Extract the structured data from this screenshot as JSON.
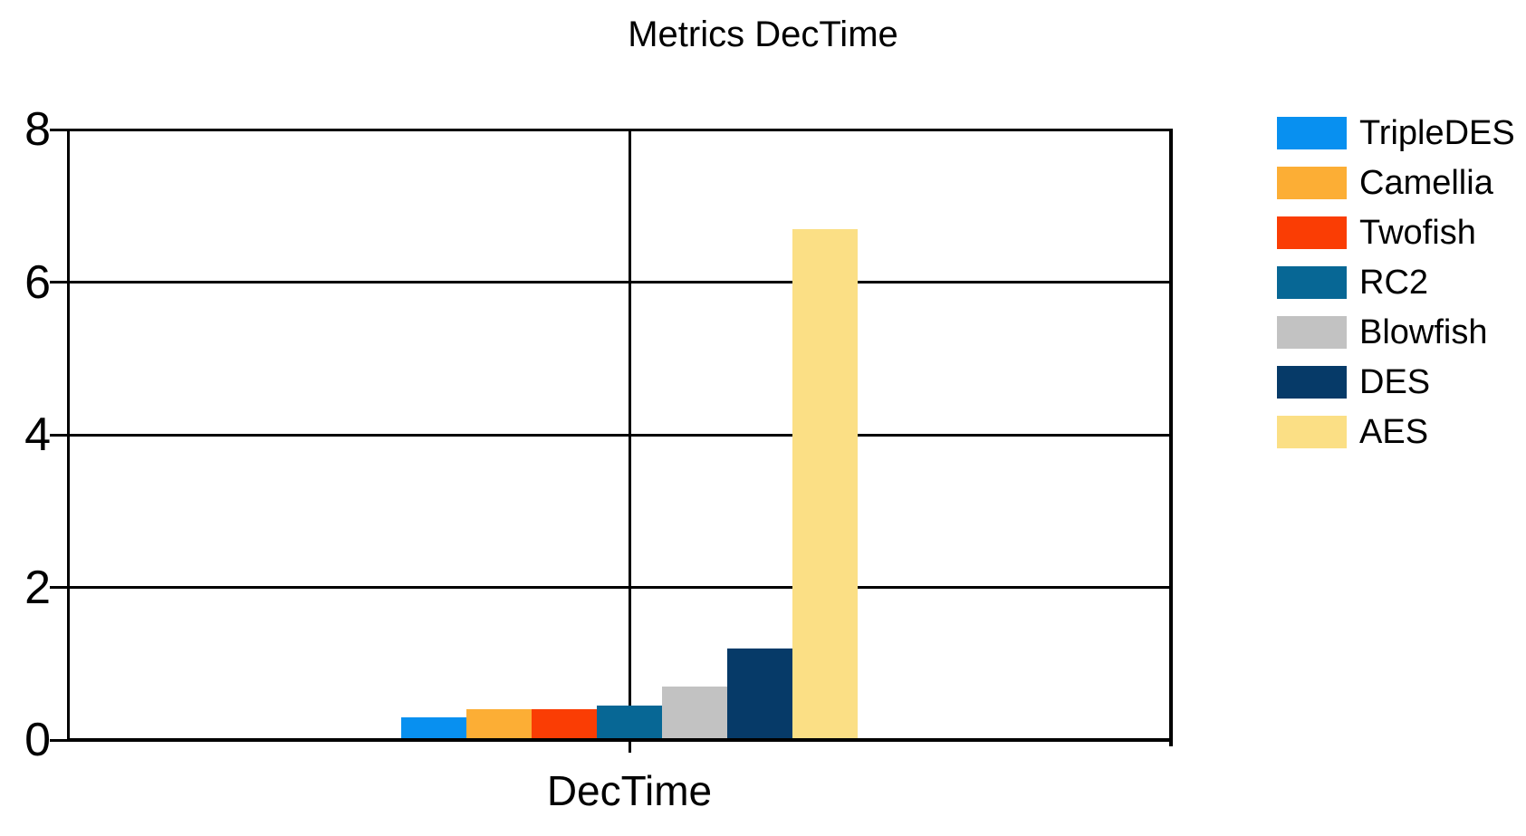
{
  "chart_data": {
    "type": "bar",
    "title": "Metrics DecTime",
    "categories": [
      "DecTime"
    ],
    "series": [
      {
        "name": "TripleDES",
        "values": [
          0.3
        ],
        "color": "#0890F0"
      },
      {
        "name": "Camellia",
        "values": [
          0.4
        ],
        "color": "#FCAE35"
      },
      {
        "name": "Twofish",
        "values": [
          0.4
        ],
        "color": "#FA3D04"
      },
      {
        "name": "RC2",
        "values": [
          0.45
        ],
        "color": "#076795"
      },
      {
        "name": "Blowfish",
        "values": [
          0.7
        ],
        "color": "#C2C2C2"
      },
      {
        "name": "DES",
        "values": [
          1.2
        ],
        "color": "#063A68"
      },
      {
        "name": "AES",
        "values": [
          6.7
        ],
        "color": "#FBDF85"
      }
    ],
    "xlabel": "DecTime",
    "ylabel": "",
    "ylim": [
      0,
      8
    ],
    "yticks": [
      0,
      2,
      4,
      6,
      8
    ],
    "grid": true,
    "legend_position": "right",
    "axis_color": "#000000",
    "background_color": "#FFFFFF"
  }
}
